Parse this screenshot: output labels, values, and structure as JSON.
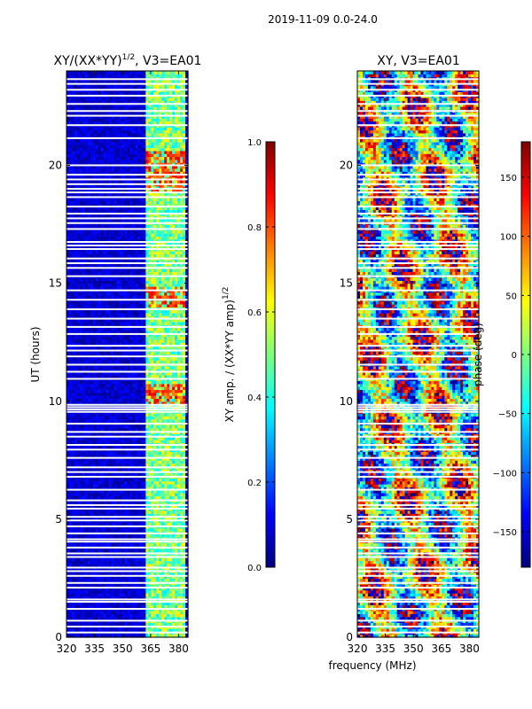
{
  "suptitle": "2019-11-09 0.0-24.0",
  "colors": {
    "jet": [
      "#00007f",
      "#0000ff",
      "#007fff",
      "#00ffff",
      "#7fff7f",
      "#ffff00",
      "#ff7f00",
      "#ff0000",
      "#7f0000"
    ]
  },
  "chart_data": [
    {
      "type": "heatmap",
      "title": "XY/(XX*YY)",
      "title_sup": "1/2",
      "title_suffix": ", V3=EA01",
      "xlabel": "",
      "ylabel": "UT (hours)",
      "xlim": [
        320,
        385
      ],
      "ylim": [
        0,
        24
      ],
      "xticks": [
        {
          "value": 320,
          "label": "320"
        },
        {
          "value": 335,
          "label": "335"
        },
        {
          "value": 350,
          "label": "350"
        },
        {
          "value": 365,
          "label": "365"
        },
        {
          "value": 380,
          "label": "380"
        }
      ],
      "yticks": [
        {
          "value": 0,
          "label": "0"
        },
        {
          "value": 5,
          "label": "5"
        },
        {
          "value": 10,
          "label": "10"
        },
        {
          "value": 15,
          "label": "15"
        },
        {
          "value": 20,
          "label": "20"
        }
      ],
      "colormap": "jet",
      "colorbar": {
        "label": "XY amp. / (XX*YY amp)",
        "label_sup": "1/2",
        "range": [
          0.0,
          1.0
        ],
        "ticks": [
          {
            "value": 0.0,
            "label": "0.0"
          },
          {
            "value": 0.2,
            "label": "0.2"
          },
          {
            "value": 0.4,
            "label": "0.4"
          },
          {
            "value": 0.6,
            "label": "0.6"
          },
          {
            "value": 0.8,
            "label": "0.8"
          },
          {
            "value": 1.0,
            "label": "1.0"
          }
        ]
      },
      "features": {
        "background_value": 0.08,
        "active_band_mhz": [
          362,
          383
        ],
        "active_band_value": 0.5,
        "bright_intervals_ut": [
          [
            9.9,
            10.8
          ],
          [
            14.0,
            14.9
          ],
          [
            18.9,
            20.6
          ]
        ],
        "bright_value": 0.82
      }
    },
    {
      "type": "heatmap",
      "title": "XY, V3=EA01",
      "xlabel": "frequency (MHz)",
      "ylabel": "",
      "xlim": [
        320,
        385
      ],
      "ylim": [
        0,
        24
      ],
      "xticks": [
        {
          "value": 320,
          "label": "320"
        },
        {
          "value": 335,
          "label": "335"
        },
        {
          "value": 350,
          "label": "350"
        },
        {
          "value": 365,
          "label": "365"
        },
        {
          "value": 380,
          "label": "380"
        }
      ],
      "yticks": [
        {
          "value": 0,
          "label": "0"
        },
        {
          "value": 5,
          "label": "5"
        },
        {
          "value": 10,
          "label": "10"
        },
        {
          "value": 15,
          "label": "15"
        },
        {
          "value": 20,
          "label": "20"
        }
      ],
      "colormap": "jet",
      "colorbar": {
        "label": "phase (deg)",
        "range": [
          -180,
          180
        ],
        "ticks": [
          {
            "value": -150,
            "label": "−150"
          },
          {
            "value": -100,
            "label": "−100"
          },
          {
            "value": -50,
            "label": "−50"
          },
          {
            "value": 0,
            "label": "0"
          },
          {
            "value": 50,
            "label": "50"
          },
          {
            "value": 100,
            "label": "100"
          },
          {
            "value": 150,
            "label": "150"
          }
        ]
      }
    }
  ],
  "flagged_ut_hours": [
    0.2,
    0.45,
    0.7,
    1.2,
    1.5,
    1.6,
    2.1,
    2.3,
    2.6,
    2.8,
    2.95,
    3.4,
    3.55,
    3.8,
    4.05,
    4.15,
    4.4,
    4.7,
    4.95,
    5.1,
    5.45,
    5.6,
    5.8,
    6.25,
    6.8,
    7.0,
    7.2,
    7.6,
    7.95,
    8.15,
    8.5,
    8.7,
    9.05,
    9.55,
    9.65,
    9.75,
    9.85,
    10.95,
    11.25,
    11.55,
    11.9,
    12.15,
    12.35,
    12.85,
    13.15,
    13.5,
    13.9,
    14.3,
    14.7,
    15.3,
    15.65,
    15.85,
    16.05,
    16.45,
    16.6,
    16.75,
    17.3,
    17.55,
    17.75,
    17.95,
    18.25,
    18.65,
    18.85,
    19.0,
    19.2,
    19.4,
    19.6,
    20.0,
    21.15,
    21.7,
    22.1,
    22.3,
    22.6,
    22.95,
    23.2,
    23.45,
    23.65
  ]
}
